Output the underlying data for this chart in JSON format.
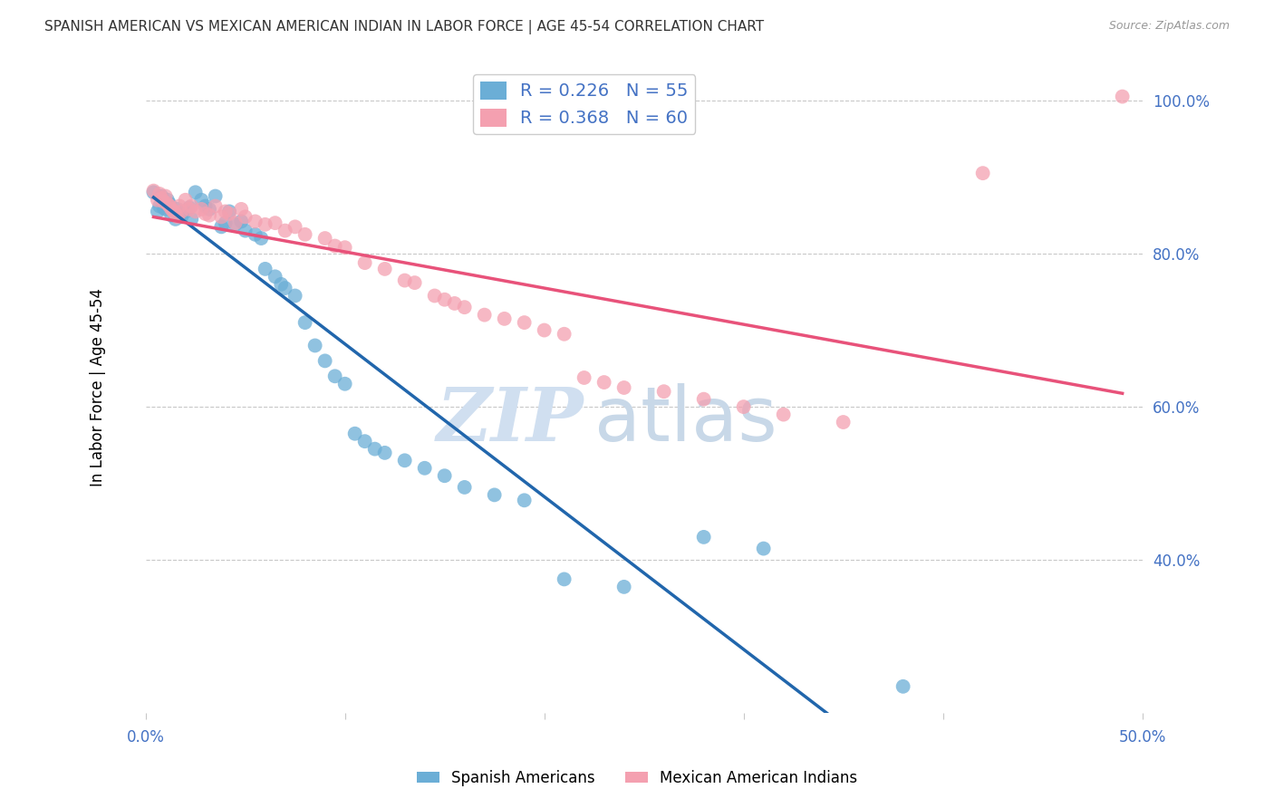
{
  "title": "SPANISH AMERICAN VS MEXICAN AMERICAN INDIAN IN LABOR FORCE | AGE 45-54 CORRELATION CHART",
  "source": "Source: ZipAtlas.com",
  "ylabel": "In Labor Force | Age 45-54",
  "xlim": [
    0.0,
    0.5
  ],
  "ylim": [
    0.2,
    1.05
  ],
  "yticks_right": [
    0.4,
    0.6,
    0.8,
    1.0
  ],
  "ytick_right_labels": [
    "40.0%",
    "60.0%",
    "80.0%",
    "100.0%"
  ],
  "legend_r1": "R = 0.226",
  "legend_n1": "N = 55",
  "legend_r2": "R = 0.368",
  "legend_n2": "N = 60",
  "blue_color": "#6baed6",
  "pink_color": "#f4a0b0",
  "blue_line_color": "#2166ac",
  "pink_line_color": "#e8527a",
  "grid_color": "#c8c8c8",
  "watermark_zip": "ZIP",
  "watermark_atlas": "atlas",
  "watermark_color_zip": "#d0dff0",
  "watermark_color_atlas": "#c8d8e8",
  "axis_label_color": "#4472c4",
  "blue_x": [
    0.004,
    0.006,
    0.007,
    0.008,
    0.009,
    0.01,
    0.011,
    0.012,
    0.013,
    0.014,
    0.015,
    0.016,
    0.017,
    0.018,
    0.02,
    0.022,
    0.023,
    0.025,
    0.028,
    0.03,
    0.032,
    0.035,
    0.038,
    0.04,
    0.042,
    0.045,
    0.048,
    0.05,
    0.055,
    0.058,
    0.06,
    0.065,
    0.068,
    0.07,
    0.075,
    0.08,
    0.085,
    0.09,
    0.095,
    0.1,
    0.105,
    0.11,
    0.115,
    0.12,
    0.13,
    0.14,
    0.15,
    0.16,
    0.175,
    0.19,
    0.21,
    0.24,
    0.28,
    0.31,
    0.38
  ],
  "blue_y": [
    0.88,
    0.855,
    0.862,
    0.875,
    0.86,
    0.858,
    0.87,
    0.865,
    0.85,
    0.855,
    0.845,
    0.858,
    0.852,
    0.848,
    0.855,
    0.86,
    0.845,
    0.88,
    0.87,
    0.862,
    0.858,
    0.875,
    0.835,
    0.84,
    0.855,
    0.838,
    0.842,
    0.83,
    0.825,
    0.82,
    0.78,
    0.77,
    0.76,
    0.755,
    0.745,
    0.71,
    0.68,
    0.66,
    0.64,
    0.63,
    0.565,
    0.555,
    0.545,
    0.54,
    0.53,
    0.52,
    0.51,
    0.495,
    0.485,
    0.478,
    0.375,
    0.365,
    0.43,
    0.415,
    0.235
  ],
  "pink_x": [
    0.004,
    0.006,
    0.007,
    0.008,
    0.009,
    0.01,
    0.011,
    0.012,
    0.013,
    0.014,
    0.015,
    0.016,
    0.017,
    0.018,
    0.02,
    0.022,
    0.023,
    0.025,
    0.028,
    0.03,
    0.032,
    0.035,
    0.038,
    0.04,
    0.042,
    0.045,
    0.048,
    0.05,
    0.055,
    0.06,
    0.065,
    0.07,
    0.075,
    0.08,
    0.09,
    0.095,
    0.1,
    0.11,
    0.12,
    0.13,
    0.135,
    0.145,
    0.15,
    0.155,
    0.16,
    0.17,
    0.18,
    0.19,
    0.2,
    0.21,
    0.22,
    0.23,
    0.24,
    0.26,
    0.28,
    0.3,
    0.32,
    0.35,
    0.42,
    0.49
  ],
  "pink_y": [
    0.882,
    0.87,
    0.878,
    0.872,
    0.868,
    0.875,
    0.865,
    0.862,
    0.858,
    0.855,
    0.852,
    0.848,
    0.862,
    0.855,
    0.87,
    0.858,
    0.862,
    0.855,
    0.858,
    0.852,
    0.85,
    0.862,
    0.848,
    0.855,
    0.852,
    0.84,
    0.858,
    0.848,
    0.842,
    0.838,
    0.84,
    0.83,
    0.835,
    0.825,
    0.82,
    0.81,
    0.808,
    0.788,
    0.78,
    0.765,
    0.762,
    0.745,
    0.74,
    0.735,
    0.73,
    0.72,
    0.715,
    0.71,
    0.7,
    0.695,
    0.638,
    0.632,
    0.625,
    0.62,
    0.61,
    0.6,
    0.59,
    0.58,
    0.905,
    1.005
  ],
  "background_color": "#ffffff",
  "legend_labels": [
    "Spanish Americans",
    "Mexican American Indians"
  ]
}
